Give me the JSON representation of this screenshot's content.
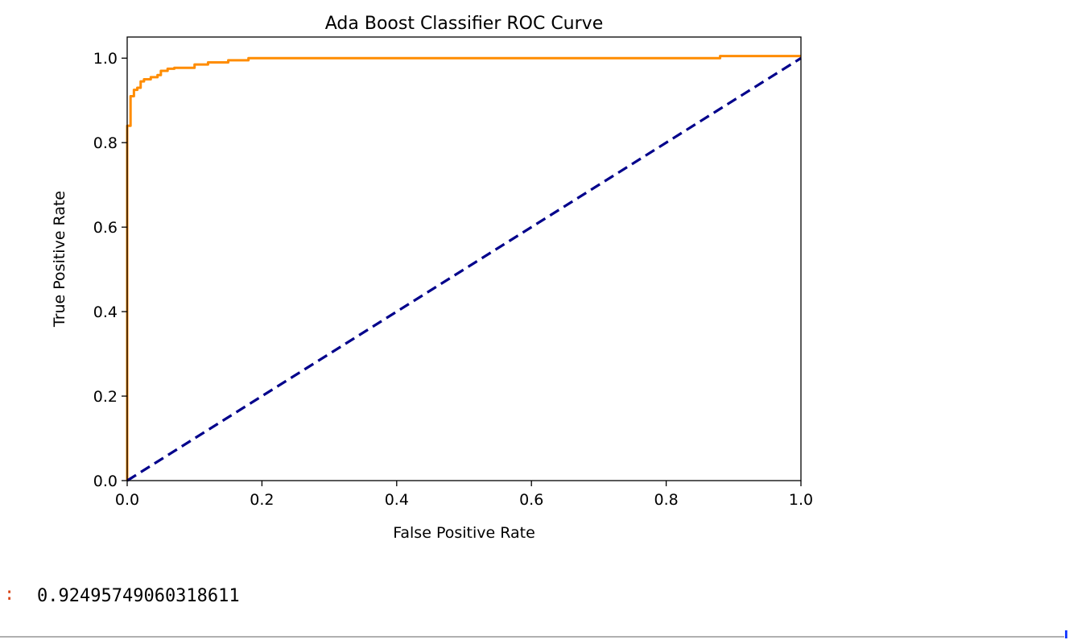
{
  "chart_data": {
    "type": "line",
    "title": "Ada Boost Classifier ROC Curve",
    "xlabel": "False Positive Rate",
    "ylabel": "True Positive Rate",
    "xlim": [
      0.0,
      1.0
    ],
    "ylim": [
      0.0,
      1.05
    ],
    "xticks": [
      "0.0",
      "0.2",
      "0.4",
      "0.6",
      "0.8",
      "1.0"
    ],
    "yticks": [
      "0.0",
      "0.2",
      "0.4",
      "0.6",
      "0.8",
      "1.0"
    ],
    "grid": false,
    "series": [
      {
        "color": "#ff8c00",
        "style": "solid",
        "x": [
          0.0,
          0.0,
          0.005,
          0.005,
          0.01,
          0.01,
          0.015,
          0.015,
          0.02,
          0.02,
          0.025,
          0.025,
          0.035,
          0.035,
          0.045,
          0.045,
          0.05,
          0.05,
          0.06,
          0.06,
          0.07,
          0.07,
          0.1,
          0.1,
          0.12,
          0.12,
          0.15,
          0.15,
          0.18,
          0.18,
          0.88,
          0.88,
          1.0
        ],
        "y": [
          0.0,
          0.84,
          0.84,
          0.91,
          0.91,
          0.925,
          0.925,
          0.93,
          0.93,
          0.945,
          0.945,
          0.95,
          0.95,
          0.955,
          0.955,
          0.96,
          0.96,
          0.97,
          0.97,
          0.975,
          0.975,
          0.977,
          0.977,
          0.985,
          0.985,
          0.99,
          0.99,
          0.995,
          0.995,
          1.0,
          1.0,
          1.005,
          1.005
        ]
      },
      {
        "color": "#00008b",
        "style": "dashed",
        "x": [
          0.0,
          1.0
        ],
        "y": [
          0.0,
          1.0
        ]
      }
    ]
  },
  "output": {
    "prompt": ":",
    "value": "0.92495749060318611"
  },
  "colors": {
    "prompt": "#d84315",
    "divider": "#b0b0b0",
    "cursor": "#1e40ff"
  }
}
